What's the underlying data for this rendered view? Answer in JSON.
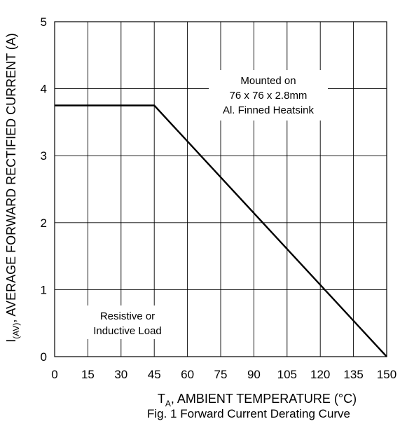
{
  "chart_data": {
    "type": "line",
    "title": "Fig. 1 Forward Current Derating Curve",
    "xlabel": {
      "main": "T",
      "sub": "A",
      "rest": ", AMBIENT TEMPERATURE (°C)"
    },
    "ylabel": {
      "main": "I",
      "sub": "(AV)",
      "rest": ", AVERAGE FORWARD RECTIFIED CURRENT (A)"
    },
    "xlim": [
      0,
      150
    ],
    "ylim": [
      0,
      5
    ],
    "xticks": [
      0,
      15,
      30,
      45,
      60,
      75,
      90,
      105,
      120,
      135,
      150
    ],
    "yticks": [
      0,
      1,
      2,
      3,
      4,
      5
    ],
    "grid": true,
    "series": [
      {
        "x": [
          0,
          45,
          150
        ],
        "y": [
          3.75,
          3.75,
          0
        ]
      }
    ],
    "annotations": [
      {
        "lines": [
          "Mounted on",
          "76 x 76 x 2.8mm",
          "Al. Finned Heatsink"
        ]
      },
      {
        "lines": [
          "Resistive or",
          "Inductive Load"
        ]
      }
    ]
  }
}
